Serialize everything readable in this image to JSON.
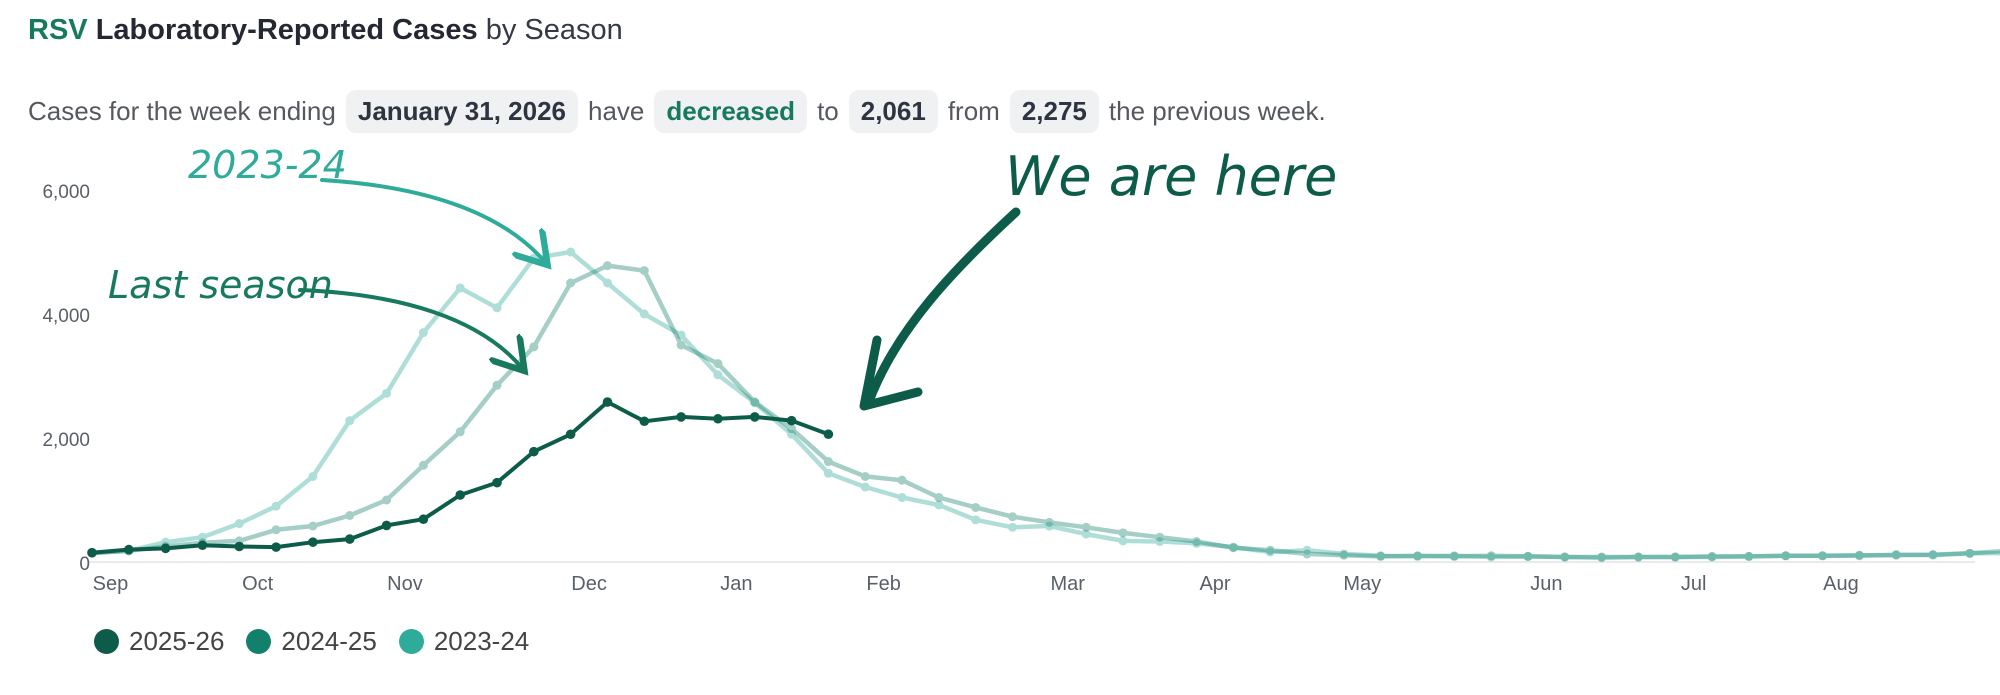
{
  "header": {
    "title_prefix": "RSV",
    "title_main": "Laboratory-Reported Cases",
    "title_suffix": "by Season"
  },
  "summary": {
    "part1": "Cases for the week ending",
    "date": "January 31, 2026",
    "part2": "have",
    "trend": "decreased",
    "part3": "to",
    "current": "2,061",
    "part4": "from",
    "previous": "2,275",
    "part5": "the previous week."
  },
  "annotations": {
    "season_2023": "2023-24",
    "last_season": "Last season",
    "we_are_here": "We are here"
  },
  "colors": {
    "s2025": "#0d5c4a",
    "s2024": "#13806c",
    "s2023": "#2fab9a",
    "accent": "#17795e"
  },
  "chart_data": {
    "type": "line",
    "title": "RSV Laboratory-Reported Cases by Season",
    "x_labels": [
      "Sep",
      "Oct",
      "Nov",
      "Dec",
      "Jan",
      "Feb",
      "Mar",
      "Apr",
      "May",
      "Jun",
      "Jul",
      "Aug"
    ],
    "x_label_weeks": [
      0.5,
      4.5,
      8.5,
      13.5,
      17.5,
      21.5,
      26.5,
      30.5,
      34.5,
      39.5,
      43.5,
      47.5
    ],
    "ylim": [
      0,
      6000
    ],
    "yticks": [
      0,
      2000,
      4000,
      6000
    ],
    "ytick_labels": [
      "0",
      "2,000",
      "4,000",
      "6,000"
    ],
    "legend_position": "bottom-left",
    "series": [
      {
        "name": "2023-24",
        "values": [
          150,
          180,
          320,
          400,
          620,
          900,
          1380,
          2280,
          2720,
          3700,
          4420,
          4100,
          4900,
          5000,
          4500,
          4000,
          3660,
          3020,
          2570,
          2060,
          1430,
          1210,
          1040,
          920,
          680,
          560,
          580,
          450,
          340,
          330,
          300,
          240,
          160,
          190,
          130,
          100,
          90,
          100,
          80,
          90,
          80,
          70,
          80,
          80,
          80,
          90,
          100,
          100,
          100,
          120,
          110,
          140,
          140
        ]
      },
      {
        "name": "2024-25",
        "values": [
          140,
          180,
          250,
          310,
          340,
          520,
          580,
          750,
          1000,
          1560,
          2100,
          2850,
          3470,
          4500,
          4780,
          4700,
          3500,
          3200,
          2580,
          2150,
          1620,
          1380,
          1320,
          1040,
          880,
          730,
          640,
          560,
          470,
          400,
          330,
          230,
          190,
          130,
          110,
          90,
          100,
          90,
          100,
          90,
          80,
          80,
          80,
          80,
          90,
          90,
          100,
          100,
          110,
          110,
          120,
          140,
          180
        ]
      },
      {
        "name": "2025-26",
        "values": [
          150,
          200,
          220,
          270,
          250,
          240,
          320,
          370,
          590,
          690,
          1080,
          1280,
          1780,
          2060,
          2580,
          2270,
          2340,
          2310,
          2340,
          2280,
          2061
        ]
      }
    ]
  }
}
